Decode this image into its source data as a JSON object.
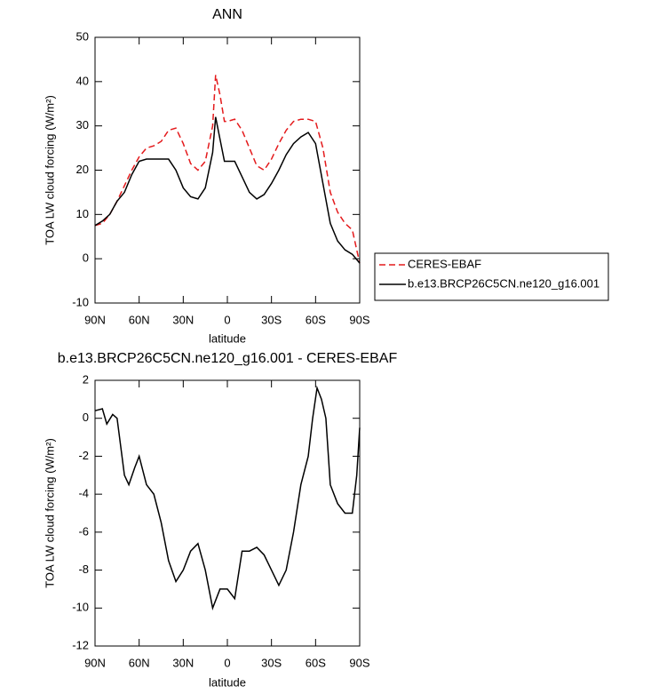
{
  "chart_data": [
    {
      "type": "line",
      "title": "ANN",
      "x_label": "latitude",
      "y_label": "TOA LW cloud forcing (W/m²)",
      "x": [
        90,
        85,
        80,
        75,
        70,
        65,
        60,
        55,
        50,
        45,
        40,
        35,
        30,
        25,
        20,
        15,
        10,
        8,
        5,
        2,
        0,
        -5,
        -10,
        -15,
        -20,
        -25,
        -30,
        -35,
        -40,
        -45,
        -50,
        -55,
        -60,
        -65,
        -70,
        -75,
        -80,
        -85,
        -90
      ],
      "series": [
        {
          "name": "CERES-EBAF",
          "color": "#e41a1c",
          "line_style": "dashed",
          "values": [
            7.5,
            8,
            10,
            13,
            16.5,
            20,
            23,
            25,
            25.5,
            26.5,
            29,
            29.5,
            26,
            21.5,
            20,
            22,
            30,
            41.5,
            37,
            31,
            31,
            31.5,
            29,
            25,
            21,
            20,
            22.5,
            26,
            29,
            31,
            31.5,
            31.5,
            31,
            25,
            15,
            10.5,
            8,
            6.5,
            -1
          ]
        },
        {
          "name": "b.e13.BRCP26C5CN.ne120_g16.001",
          "color": "#000000",
          "line_style": "solid",
          "values": [
            7.5,
            8.5,
            10,
            13,
            15,
            19,
            22,
            22.5,
            22.5,
            22.5,
            22.5,
            20,
            16,
            14,
            13.5,
            16,
            24,
            32,
            27,
            22,
            22,
            22,
            18.5,
            15,
            13.5,
            14.5,
            17,
            20,
            23.5,
            26,
            27.5,
            28.5,
            26,
            17,
            8,
            4,
            2,
            1,
            -1
          ]
        }
      ],
      "xlim": [
        90,
        -90
      ],
      "xticks": [
        {
          "value": 90,
          "label": "90N"
        },
        {
          "value": 60,
          "label": "60N"
        },
        {
          "value": 30,
          "label": "30N"
        },
        0,
        {
          "value": -30,
          "label": "30S"
        },
        {
          "value": -60,
          "label": "60S"
        },
        {
          "value": -90,
          "label": "90S"
        }
      ],
      "ylim": [
        -10,
        50
      ],
      "yticks": [
        -10,
        0,
        10,
        20,
        30,
        40,
        50
      ],
      "legend": "right"
    },
    {
      "type": "line",
      "title": "b.e13.BRCP26C5CN.ne120_g16.001 - CERES-EBAF",
      "x_label": "latitude",
      "y_label": "TOA LW cloud forcing (W/m²)",
      "x": [
        90,
        85,
        82,
        78,
        75,
        70,
        67,
        63,
        60,
        55,
        50,
        45,
        40,
        35,
        30,
        25,
        20,
        15,
        10,
        5,
        0,
        -5,
        -10,
        -15,
        -20,
        -25,
        -30,
        -35,
        -40,
        -45,
        -50,
        -55,
        -58,
        -61,
        -64,
        -67,
        -70,
        -75,
        -80,
        -85,
        -88,
        -90
      ],
      "values": [
        0.4,
        0.5,
        -0.3,
        0.2,
        0,
        -3,
        -3.5,
        -2.6,
        -2,
        -3.5,
        -4,
        -5.5,
        -7.5,
        -8.6,
        -8,
        -7,
        -6.6,
        -8,
        -10,
        -9,
        -9,
        -9.5,
        -7,
        -7,
        -6.8,
        -7.2,
        -8,
        -8.8,
        -8,
        -6,
        -3.5,
        -2,
        0,
        1.6,
        1,
        0,
        -3.5,
        -4.5,
        -5,
        -5,
        -3,
        -0.5
      ],
      "color": "#000000",
      "xlim": [
        90,
        -90
      ],
      "xticks": [
        {
          "value": 90,
          "label": "90N"
        },
        {
          "value": 60,
          "label": "60N"
        },
        {
          "value": 30,
          "label": "30N"
        },
        0,
        {
          "value": -30,
          "label": "30S"
        },
        {
          "value": -60,
          "label": "60S"
        },
        {
          "value": -90,
          "label": "90S"
        }
      ],
      "ylim": [
        -12,
        2
      ],
      "yticks": [
        -12,
        -10,
        -8,
        -6,
        -4,
        -2,
        0,
        2
      ]
    }
  ]
}
